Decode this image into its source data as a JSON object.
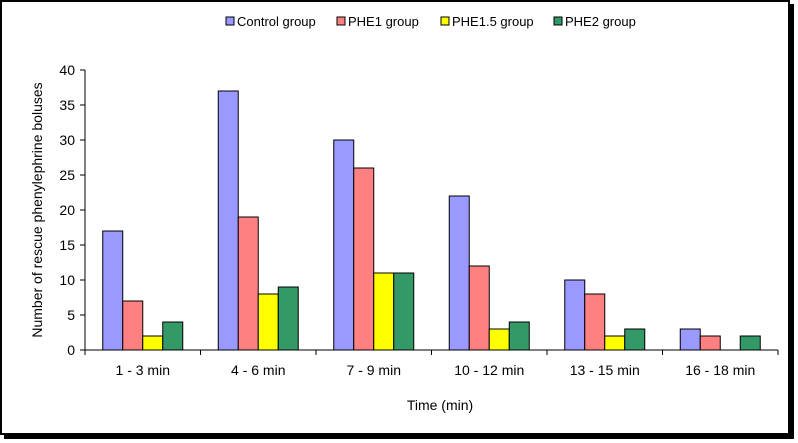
{
  "chart_data": {
    "type": "bar",
    "title": "",
    "xlabel": "Time (min)",
    "ylabel": "Number of rescue phenylephrine boluses",
    "ylim": [
      0,
      40
    ],
    "yticks": [
      0,
      5,
      10,
      15,
      20,
      25,
      30,
      35,
      40
    ],
    "grid": false,
    "legend_position": "top",
    "categories": [
      "1 - 3 min",
      "4 - 6 min",
      "7 - 9 min",
      "10 - 12 min",
      "13 - 15 min",
      "16 - 18 min"
    ],
    "series": [
      {
        "name": "Control group",
        "color": "#9999ff",
        "values": [
          17,
          37,
          30,
          22,
          10,
          3
        ]
      },
      {
        "name": "PHE1 group",
        "color": "#ff8080",
        "values": [
          7,
          19,
          26,
          12,
          8,
          2
        ]
      },
      {
        "name": "PHE1.5 group",
        "color": "#ffff00",
        "values": [
          2,
          8,
          11,
          3,
          2,
          0
        ]
      },
      {
        "name": "PHE2 group",
        "color": "#339966",
        "values": [
          4,
          9,
          11,
          4,
          3,
          2
        ]
      }
    ]
  }
}
